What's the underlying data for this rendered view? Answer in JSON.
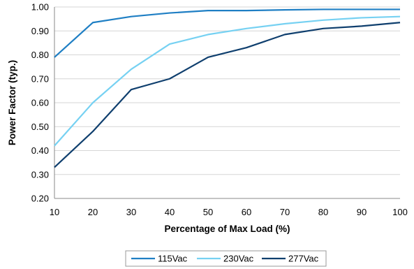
{
  "chart_data": {
    "type": "line",
    "title": "",
    "xlabel": "Percentage of Max Load (%)",
    "ylabel": "Power Factor (typ.)",
    "x": [
      10,
      20,
      30,
      40,
      50,
      60,
      70,
      80,
      90,
      100
    ],
    "xlim": [
      10,
      100
    ],
    "ylim": [
      0.2,
      1.0
    ],
    "x_ticks": [
      "10",
      "20",
      "30",
      "40",
      "50",
      "60",
      "70",
      "80",
      "90",
      "100"
    ],
    "y_ticks": [
      "0.20",
      "0.30",
      "0.40",
      "0.50",
      "0.60",
      "0.70",
      "0.80",
      "0.90",
      "1.00"
    ],
    "grid": "horizontal",
    "legend_position": "bottom",
    "series": [
      {
        "name": "115Vac",
        "color": "#1f7fc4",
        "values": [
          0.79,
          0.935,
          0.96,
          0.975,
          0.985,
          0.985,
          0.988,
          0.99,
          0.99,
          0.99
        ]
      },
      {
        "name": "230Vac",
        "color": "#76d1f2",
        "values": [
          0.42,
          0.6,
          0.74,
          0.845,
          0.885,
          0.91,
          0.93,
          0.945,
          0.955,
          0.96
        ]
      },
      {
        "name": "277Vac",
        "color": "#0f3f6e",
        "values": [
          0.33,
          0.48,
          0.655,
          0.7,
          0.79,
          0.83,
          0.885,
          0.91,
          0.92,
          0.935
        ]
      }
    ]
  }
}
